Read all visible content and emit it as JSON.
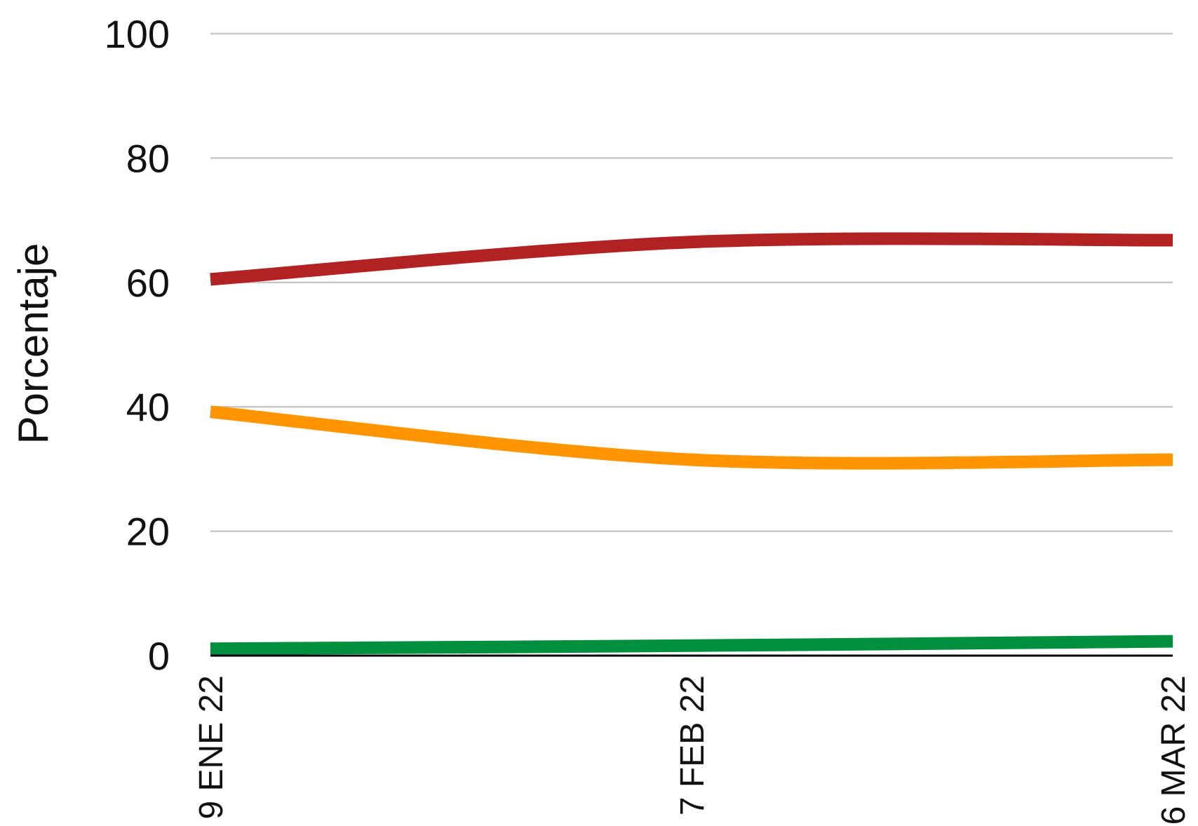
{
  "chart_data": {
    "type": "line",
    "title": "",
    "xlabel": "",
    "ylabel": "Porcentaje",
    "ylim": [
      0,
      100
    ],
    "yticks": [
      "0",
      "20",
      "40",
      "60",
      "80",
      "100"
    ],
    "x": [
      "9 ENE 22",
      "7 FEB 22",
      "6 MAR 22"
    ],
    "grid": true,
    "legend": "none",
    "series": [
      {
        "color": "#b22222",
        "values": [
          60.5,
          66.5,
          66.8
        ]
      },
      {
        "color": "#ff9500",
        "values": [
          39.2,
          31.5,
          31.5
        ]
      },
      {
        "color": "#008f3d",
        "values": [
          1.1,
          1.6,
          2.3
        ]
      }
    ]
  }
}
